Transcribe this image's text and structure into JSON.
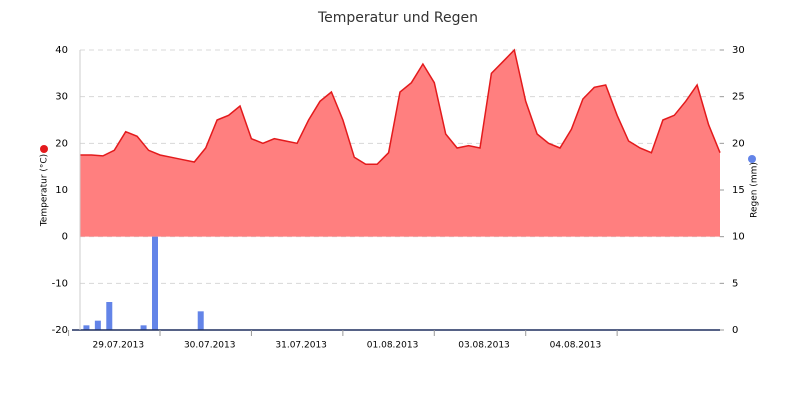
{
  "chart_data": {
    "type": "combo",
    "title": "Temperatur und Regen",
    "categories": [
      null,
      null,
      null,
      "29.07.2013",
      null,
      null,
      null,
      null,
      null,
      null,
      null,
      "30.07.2013",
      null,
      null,
      null,
      null,
      null,
      null,
      null,
      "31.07.2013",
      null,
      null,
      null,
      null,
      null,
      null,
      null,
      "01.08.2013",
      null,
      null,
      null,
      null,
      null,
      null,
      null,
      "03.08.2013",
      null,
      null,
      null,
      null,
      null,
      null,
      null,
      "04.08.2013",
      null,
      null,
      null,
      null,
      null,
      null,
      null,
      null,
      null,
      null,
      null,
      null,
      null
    ],
    "ylabel": "Temperatur (°C)",
    "y2label": "Regen (mm)",
    "ylim": [
      -20,
      40
    ],
    "yticks": [
      -20,
      -10,
      0,
      10,
      20,
      30,
      40
    ],
    "y2lim": [
      0,
      30
    ],
    "y2ticks": [
      0,
      5,
      10,
      15,
      20,
      25,
      30
    ],
    "grid": true,
    "series": [
      {
        "name": "Temperatur",
        "type": "area",
        "color": "#e31a1c",
        "fill": "#ff7f7f",
        "values": [
          17.5,
          17.5,
          17.3,
          18.5,
          22.5,
          21.5,
          18.5,
          17.5,
          17,
          16.5,
          16,
          19,
          25,
          26,
          28,
          21,
          20,
          21,
          20.5,
          20,
          25,
          29,
          31,
          25,
          17,
          15.5,
          15.5,
          18,
          31,
          33,
          37,
          33,
          22,
          19,
          19.5,
          19,
          35,
          37.5,
          40,
          29,
          22,
          20,
          19,
          23,
          29.5,
          32,
          32.5,
          26,
          20.5,
          19,
          18,
          25,
          26,
          29,
          32.5,
          24,
          18
        ]
      },
      {
        "name": "Regen",
        "type": "bar",
        "axis": "y2",
        "color": "#6384e8",
        "values": [
          null,
          0.5,
          1,
          3,
          null,
          null,
          0.5,
          10,
          null,
          null,
          null,
          2,
          null,
          null,
          null,
          null,
          null,
          null,
          null,
          null,
          null,
          null,
          null,
          null,
          null,
          null,
          null,
          null,
          null,
          null,
          null,
          null,
          null,
          null,
          null,
          null,
          null,
          null,
          null,
          null,
          null,
          null,
          null,
          null,
          null,
          null,
          null,
          null,
          null,
          null,
          null,
          null,
          null,
          null,
          null,
          null,
          null
        ]
      }
    ]
  }
}
